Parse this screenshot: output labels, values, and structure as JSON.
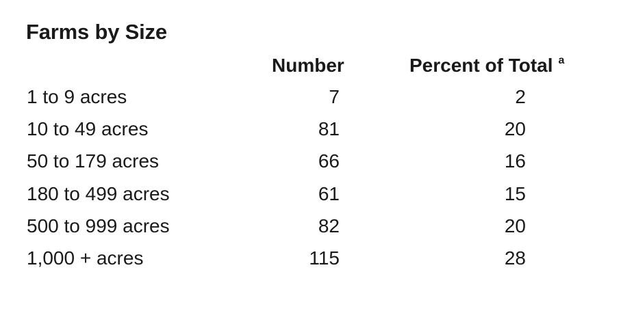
{
  "table": {
    "title": "Farms by Size",
    "columns": {
      "number": "Number",
      "percent": "Percent of Total",
      "percent_footnote": "a"
    },
    "rows": [
      {
        "label": "1 to 9 acres",
        "number": "7",
        "percent": "2"
      },
      {
        "label": "10 to 49 acres",
        "number": "81",
        "percent": "20"
      },
      {
        "label": "50 to 179 acres",
        "number": "66",
        "percent": "16"
      },
      {
        "label": "180 to 499 acres",
        "number": "61",
        "percent": "15"
      },
      {
        "label": "500 to 999 acres",
        "number": "82",
        "percent": "20"
      },
      {
        "label": "1,000 + acres",
        "number": "115",
        "percent": "28"
      }
    ]
  }
}
